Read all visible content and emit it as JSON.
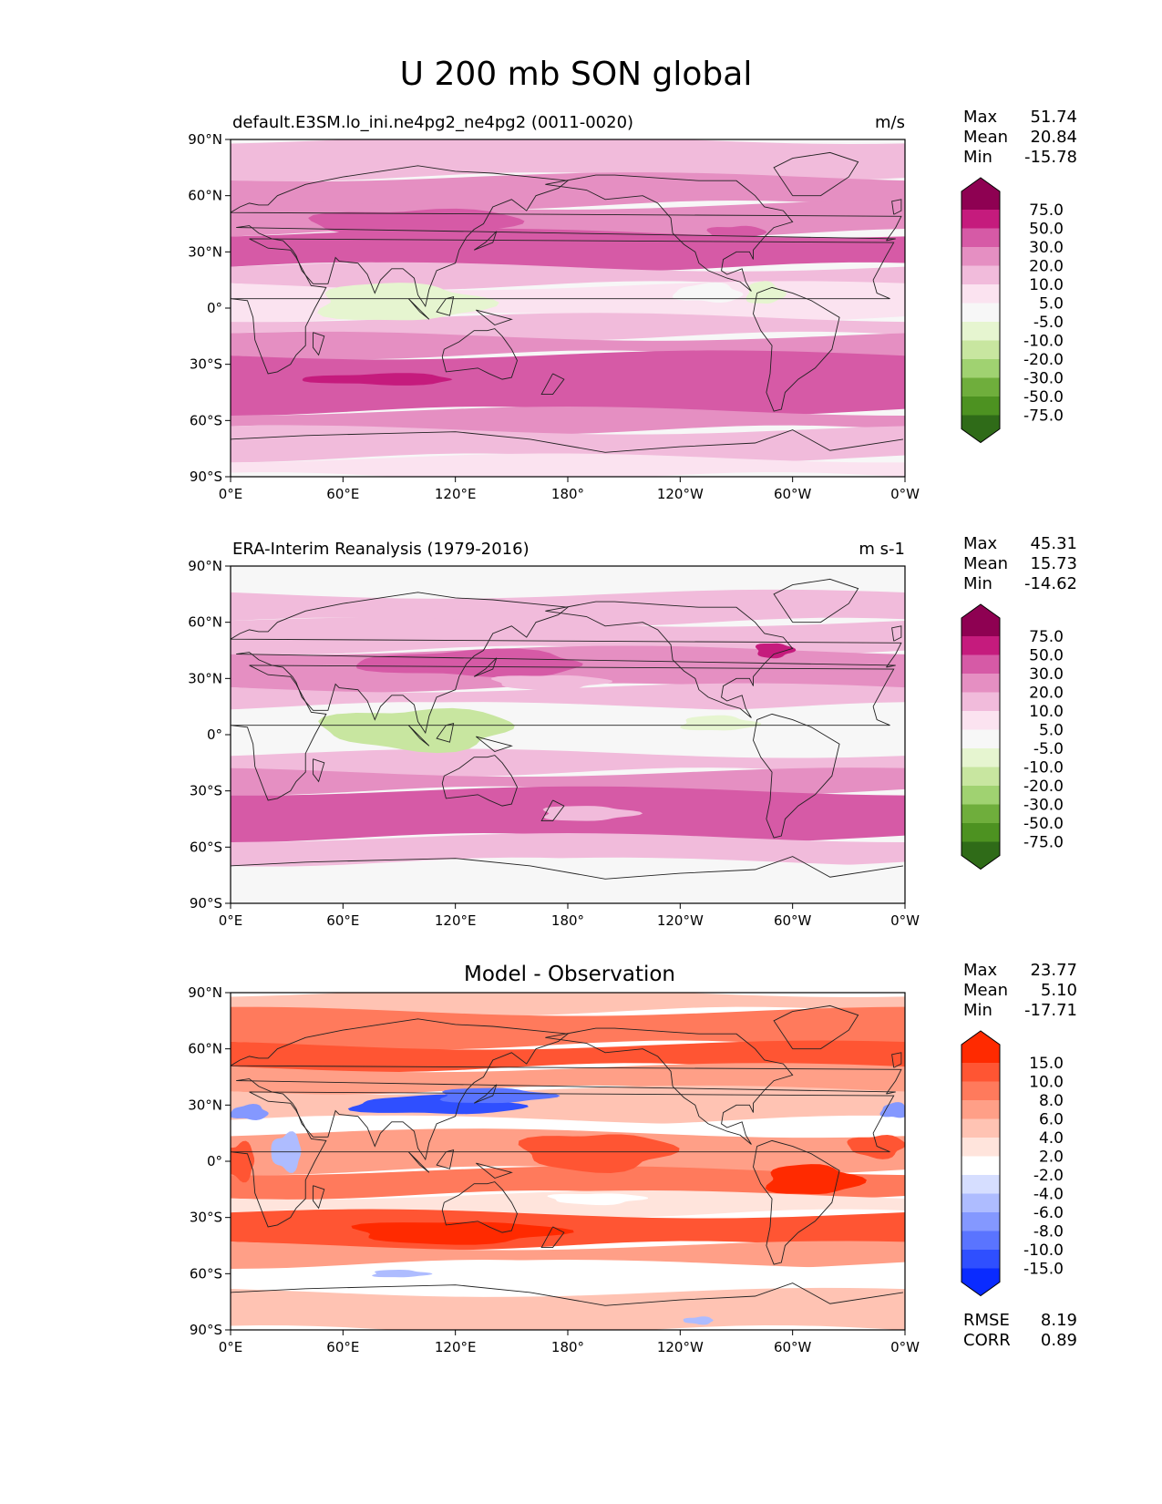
{
  "figure_title": "U 200 mb SON global",
  "chart_data": [
    {
      "type": "heatmap",
      "title": "default.E3SM.lo_ini.ne4pg2_ne4pg2 (0011-0020)",
      "units": "m/s",
      "stats": {
        "max_label": "Max",
        "max": "51.74",
        "mean_label": "Mean",
        "mean": "20.84",
        "min_label": "Min",
        "min": "-15.78"
      },
      "colorbar": {
        "labels": [
          "75.0",
          "50.0",
          "30.0",
          "20.0",
          "10.0",
          "5.0",
          "-5.0",
          "-10.0",
          "-20.0",
          "-30.0",
          "-50.0",
          "-75.0"
        ],
        "colors": [
          "#8e0152",
          "#c51b7d",
          "#d65aa6",
          "#e58fc2",
          "#f1bbdb",
          "#fbe3f0",
          "#f7f7f7",
          "#e6f5d0",
          "#c8e6a0",
          "#a0d271",
          "#6fae3c",
          "#4d9221",
          "#2f6b18"
        ]
      },
      "x_ticks": [
        "0°E",
        "60°E",
        "120°E",
        "180°",
        "120°W",
        "60°W",
        "0°W"
      ],
      "y_ticks": [
        "90°N",
        "60°N",
        "30°N",
        "0°",
        "30°S",
        "60°S",
        "90°S"
      ],
      "lat_bands": [
        {
          "lat_range": [
            70,
            90
          ],
          "level": 4
        },
        {
          "lat_range": [
            55,
            70
          ],
          "level": 3
        },
        {
          "lat_range": [
            40,
            55
          ],
          "level": 3
        },
        {
          "lat_range": [
            22,
            40
          ],
          "level": 2
        },
        {
          "lat_range": [
            12,
            22
          ],
          "level": 4
        },
        {
          "lat_range": [
            -5,
            12
          ],
          "level": 5
        },
        {
          "lat_range": [
            -15,
            -5
          ],
          "level": 4
        },
        {
          "lat_range": [
            -25,
            -15
          ],
          "level": 3
        },
        {
          "lat_range": [
            -55,
            -25
          ],
          "level": 2
        },
        {
          "lat_range": [
            -65,
            -55
          ],
          "level": 3
        },
        {
          "lat_range": [
            -80,
            -65
          ],
          "level": 4
        },
        {
          "lat_range": [
            -90,
            -80
          ],
          "level": 5
        }
      ],
      "blobs": [
        {
          "lon": 90,
          "lat": 3,
          "rlon": 45,
          "rlat": 10,
          "level": 7
        },
        {
          "lon": 255,
          "lat": 8,
          "rlon": 18,
          "rlat": 5,
          "level": 6
        },
        {
          "lon": 285,
          "lat": 8,
          "rlon": 10,
          "rlat": 6,
          "level": 7
        },
        {
          "lon": 100,
          "lat": 45,
          "rlon": 55,
          "rlat": 8,
          "level": 2
        },
        {
          "lon": 270,
          "lat": 40,
          "rlon": 15,
          "rlat": 4,
          "level": 2
        },
        {
          "lon": 80,
          "lat": -38,
          "rlon": 40,
          "rlat": 3,
          "level": 1
        }
      ]
    },
    {
      "type": "heatmap",
      "title": "ERA-Interim Reanalysis (1979-2016)",
      "units": "m s-1",
      "stats": {
        "max_label": "Max",
        "max": "45.31",
        "mean_label": "Mean",
        "mean": "15.73",
        "min_label": "Min",
        "min": "-14.62"
      },
      "colorbar": {
        "labels": [
          "75.0",
          "50.0",
          "30.0",
          "20.0",
          "10.0",
          "5.0",
          "-5.0",
          "-10.0",
          "-20.0",
          "-30.0",
          "-50.0",
          "-75.0"
        ],
        "colors": [
          "#8e0152",
          "#c51b7d",
          "#d65aa6",
          "#e58fc2",
          "#f1bbdb",
          "#fbe3f0",
          "#f7f7f7",
          "#e6f5d0",
          "#c8e6a0",
          "#a0d271",
          "#6fae3c",
          "#4d9221",
          "#2f6b18"
        ]
      },
      "x_ticks": [
        "0°E",
        "60°E",
        "120°E",
        "180°",
        "120°W",
        "60°W",
        "0°W"
      ],
      "y_ticks": [
        "90°N",
        "60°N",
        "30°N",
        "0°",
        "30°S",
        "60°S",
        "90°S"
      ],
      "lat_bands": [
        {
          "lat_range": [
            75,
            90
          ],
          "level": 6
        },
        {
          "lat_range": [
            60,
            75
          ],
          "level": 4
        },
        {
          "lat_range": [
            45,
            60
          ],
          "level": 4
        },
        {
          "lat_range": [
            25,
            45
          ],
          "level": 3
        },
        {
          "lat_range": [
            15,
            25
          ],
          "level": 4
        },
        {
          "lat_range": [
            -10,
            15
          ],
          "level": 6
        },
        {
          "lat_range": [
            -20,
            -10
          ],
          "level": 4
        },
        {
          "lat_range": [
            -30,
            -20
          ],
          "level": 3
        },
        {
          "lat_range": [
            -55,
            -30
          ],
          "level": 2
        },
        {
          "lat_range": [
            -68,
            -55
          ],
          "level": 4
        },
        {
          "lat_range": [
            -90,
            -68
          ],
          "level": 6
        }
      ],
      "blobs": [
        {
          "lon": 100,
          "lat": 3,
          "rlon": 50,
          "rlat": 11,
          "level": 8
        },
        {
          "lon": 260,
          "lat": 6,
          "rlon": 20,
          "rlat": 4,
          "level": 7
        },
        {
          "lon": 130,
          "lat": 38,
          "rlon": 60,
          "rlat": 7,
          "level": 2
        },
        {
          "lon": 290,
          "lat": 45,
          "rlon": 10,
          "rlat": 4,
          "level": 1
        },
        {
          "lon": 190,
          "lat": -42,
          "rlon": 25,
          "rlat": 4,
          "level": 4
        },
        {
          "lon": 170,
          "lat": 28,
          "rlon": 30,
          "rlat": 4,
          "level": 4
        }
      ]
    },
    {
      "type": "heatmap",
      "title": "Model - Observation",
      "units": "",
      "stats": {
        "max_label": "Max",
        "max": "23.77",
        "mean_label": "Mean",
        "mean": "5.10",
        "min_label": "Min",
        "min": "-17.71"
      },
      "metrics": {
        "rmse_label": "RMSE",
        "rmse": "8.19",
        "corr_label": "CORR",
        "corr": "0.89"
      },
      "colorbar": {
        "labels": [
          "15.0",
          "10.0",
          "8.0",
          "6.0",
          "4.0",
          "2.0",
          "-2.0",
          "-4.0",
          "-6.0",
          "-8.0",
          "-10.0",
          "-15.0"
        ],
        "colors": [
          "#ff2a00",
          "#ff5533",
          "#ff7a5c",
          "#ff9f87",
          "#ffc3b3",
          "#ffe4dc",
          "#ffffff",
          "#d6deff",
          "#aebcff",
          "#8498ff",
          "#5a74ff",
          "#2f4fff",
          "#0a2bff"
        ]
      },
      "x_ticks": [
        "0°E",
        "60°E",
        "120°E",
        "180°",
        "120°W",
        "60°W",
        "0°W"
      ],
      "y_ticks": [
        "90°N",
        "60°N",
        "30°N",
        "0°",
        "30°S",
        "60°S",
        "90°S"
      ],
      "lat_bands": [
        {
          "lat_range": [
            80,
            90
          ],
          "level": 4
        },
        {
          "lat_range": [
            62,
            80
          ],
          "level": 2
        },
        {
          "lat_range": [
            50,
            62
          ],
          "level": 1
        },
        {
          "lat_range": [
            38,
            50
          ],
          "level": 3
        },
        {
          "lat_range": [
            22,
            38
          ],
          "level": 4
        },
        {
          "lat_range": [
            15,
            22
          ],
          "level": 6
        },
        {
          "lat_range": [
            -5,
            15
          ],
          "level": 3
        },
        {
          "lat_range": [
            -18,
            -5
          ],
          "level": 2
        },
        {
          "lat_range": [
            -28,
            -18
          ],
          "level": 5
        },
        {
          "lat_range": [
            -45,
            -28
          ],
          "level": 1
        },
        {
          "lat_range": [
            -55,
            -45
          ],
          "level": 3
        },
        {
          "lat_range": [
            -70,
            -55
          ],
          "level": 6
        },
        {
          "lat_range": [
            -90,
            -70
          ],
          "level": 4
        }
      ],
      "blobs": [
        {
          "lon": 110,
          "lat": 30,
          "rlon": 45,
          "rlat": 5,
          "level": 11
        },
        {
          "lon": 140,
          "lat": 35,
          "rlon": 30,
          "rlat": 4,
          "level": 10
        },
        {
          "lon": 10,
          "lat": 26,
          "rlon": 10,
          "rlat": 4,
          "level": 9
        },
        {
          "lon": 355,
          "lat": 27,
          "rlon": 8,
          "rlat": 4,
          "level": 9
        },
        {
          "lon": 30,
          "lat": 5,
          "rlon": 8,
          "rlat": 10,
          "level": 8
        },
        {
          "lon": 195,
          "lat": 5,
          "rlon": 40,
          "rlat": 10,
          "level": 1
        },
        {
          "lon": 310,
          "lat": -10,
          "rlon": 25,
          "rlat": 8,
          "level": 0
        },
        {
          "lon": 5,
          "lat": 0,
          "rlon": 8,
          "rlat": 10,
          "level": 1
        },
        {
          "lon": 345,
          "lat": 8,
          "rlon": 15,
          "rlat": 6,
          "level": 1
        },
        {
          "lon": 120,
          "lat": -38,
          "rlon": 55,
          "rlat": 6,
          "level": 0
        },
        {
          "lon": 195,
          "lat": -20,
          "rlon": 25,
          "rlat": 3,
          "level": 6
        },
        {
          "lon": 90,
          "lat": -60,
          "rlon": 15,
          "rlat": 2,
          "level": 8
        },
        {
          "lon": 250,
          "lat": -85,
          "rlon": 8,
          "rlat": 2,
          "level": 8
        }
      ]
    }
  ]
}
